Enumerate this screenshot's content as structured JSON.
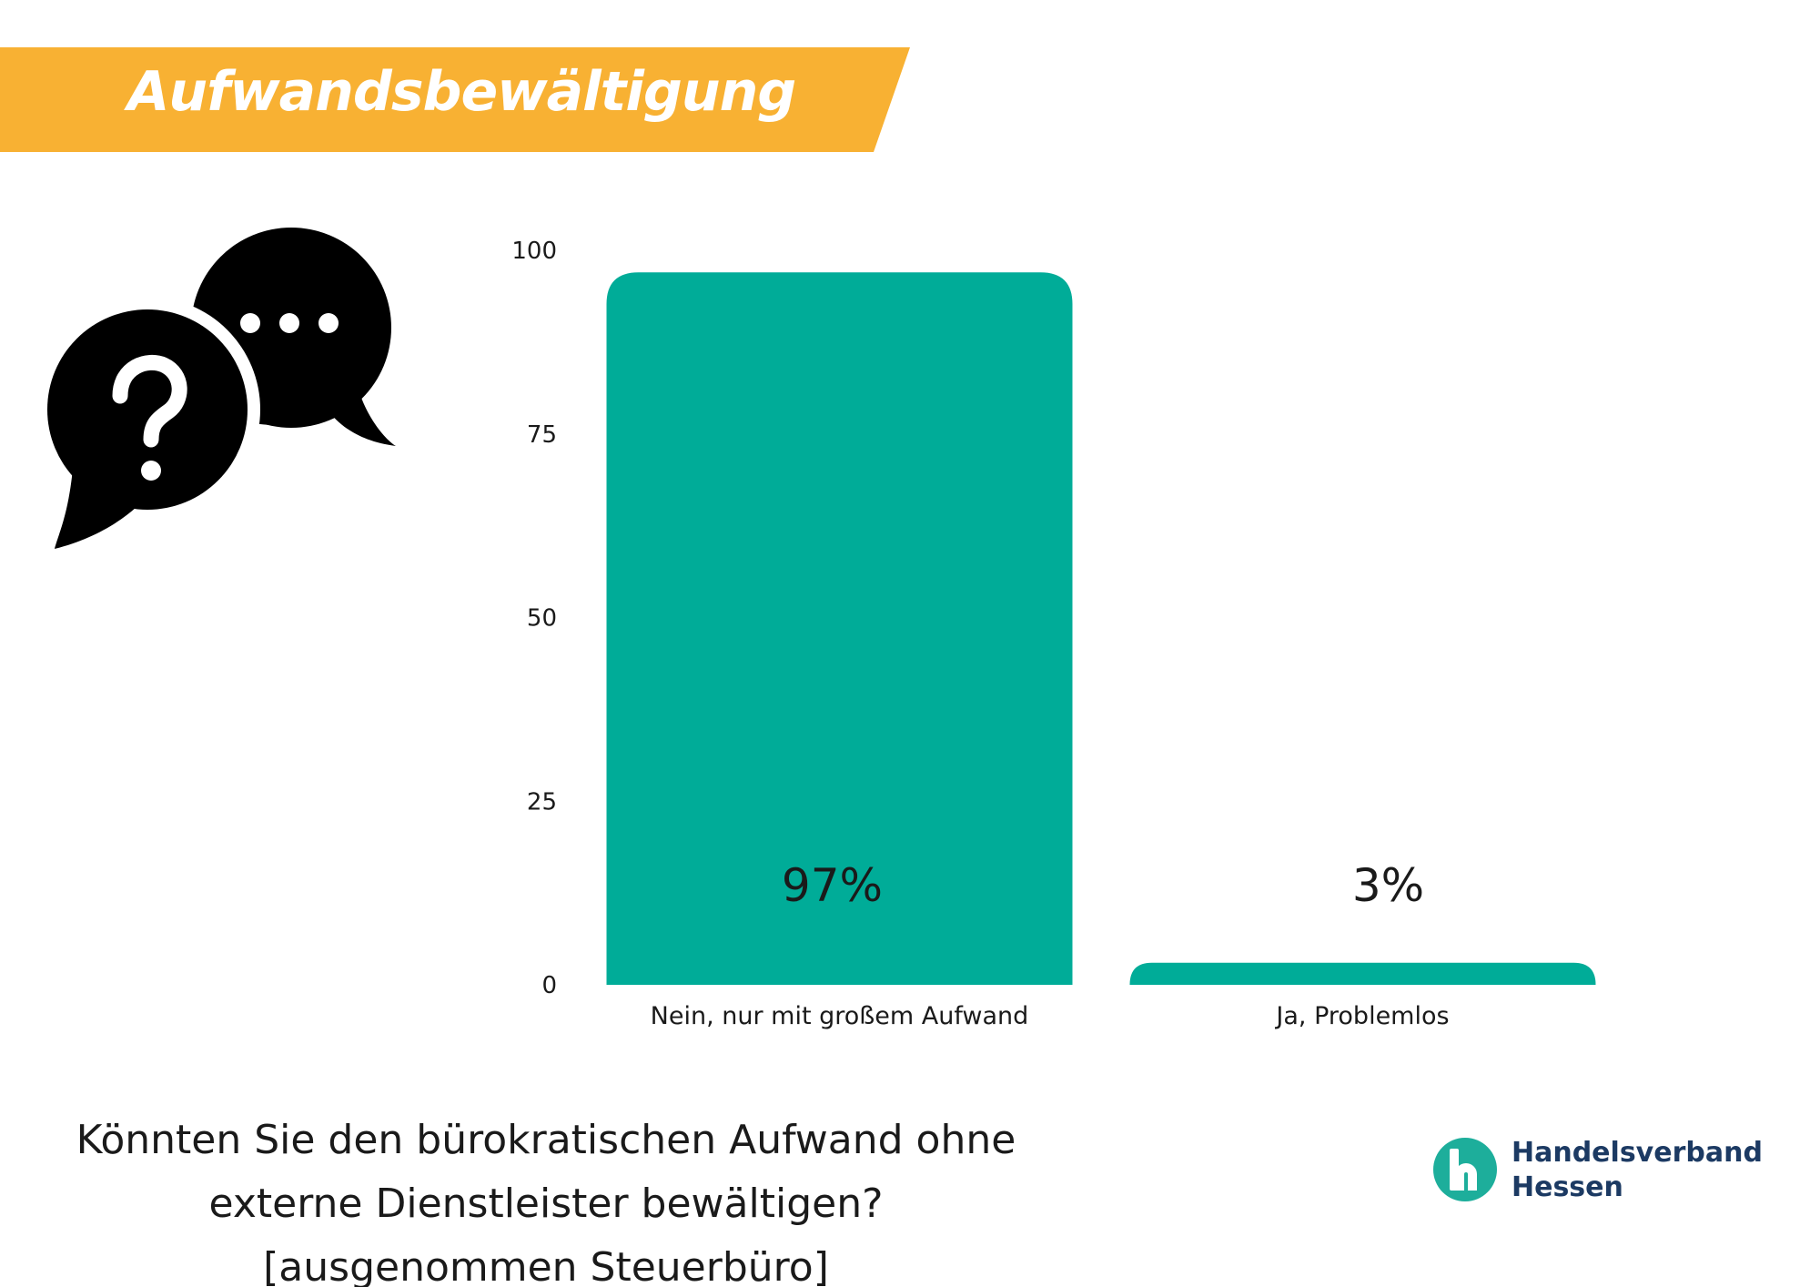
{
  "header": {
    "title": "Aufwandsbewältigung",
    "banner_color": "#F8B133"
  },
  "icon": {
    "name": "chat-bubbles-question-ellipsis-icon"
  },
  "chart_data": {
    "type": "bar",
    "categories": [
      "Nein, nur mit großem Aufwand",
      "Ja, Problemlos"
    ],
    "values": [
      97,
      3
    ],
    "value_labels": [
      "97%",
      "3%"
    ],
    "yticks": [
      "0",
      "25",
      "50",
      "75",
      "100"
    ],
    "ylim": [
      0,
      100
    ],
    "grid": false,
    "bar_color": "#00AC98"
  },
  "question": {
    "lines": [
      "Könnten Sie den bürokratischen Aufwand ohne",
      "externe Dienstleister bewältigen?",
      "[ausgenommen Steuerbüro]"
    ]
  },
  "brand": {
    "name_line1": "Handelsverband",
    "name_line2": "Hessen",
    "logo_color": "#1DAE9B",
    "text_color": "#1C3A63"
  }
}
